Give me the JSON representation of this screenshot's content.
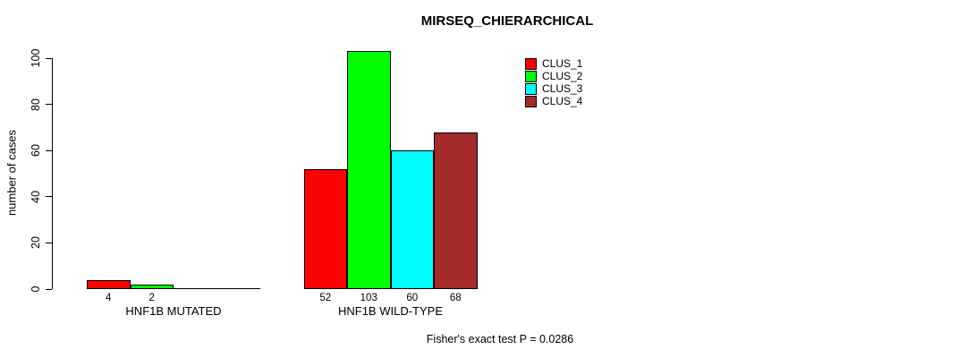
{
  "chart_data": {
    "type": "bar",
    "title": "MIRSEQ_CHIERARCHICAL",
    "ylabel": "number of cases",
    "xlabel": "",
    "ylim": [
      0,
      100
    ],
    "yticks": [
      0,
      20,
      40,
      60,
      80,
      100
    ],
    "grid": false,
    "legend_position": "top-right",
    "categories": [
      "HNF1B MUTATED",
      "HNF1B WILD-TYPE"
    ],
    "series": [
      {
        "name": "CLUS_1",
        "color": "#ff0000",
        "values": [
          4,
          52
        ]
      },
      {
        "name": "CLUS_2",
        "color": "#00ff00",
        "values": [
          2,
          103
        ]
      },
      {
        "name": "CLUS_3",
        "color": "#00ffff",
        "values": [
          0,
          60
        ]
      },
      {
        "name": "CLUS_4",
        "color": "#a52a2a",
        "values": [
          0,
          68
        ]
      }
    ],
    "value_labels": [
      [
        "4",
        "2",
        "",
        ""
      ],
      [
        "52",
        "103",
        "60",
        "68"
      ]
    ],
    "annotation": "Fisher's exact test P = 0.0286"
  },
  "colors": {
    "background": "#ffffff",
    "axis": "#000000",
    "text": "#000000"
  }
}
